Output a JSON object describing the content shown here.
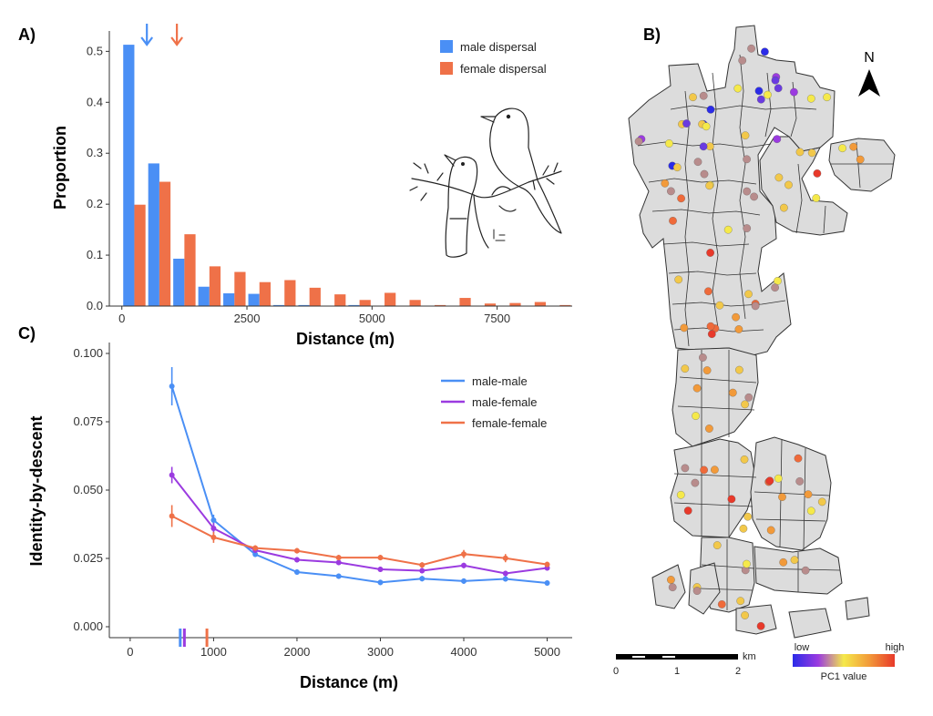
{
  "colors": {
    "male": "#4a8ff5",
    "female": "#ef7148",
    "male_female": "#9b3be0",
    "territory_fill": "#dcdcdc",
    "territory_stroke": "#333333"
  },
  "panel_labels": {
    "a": "A)",
    "b": "B)",
    "c": "C)"
  },
  "chart_data": [
    {
      "id": "A",
      "type": "bar",
      "xlabel": "Distance (m)",
      "ylabel": "Proportion",
      "xlim": [
        -250,
        9000
      ],
      "ylim": [
        0,
        0.54
      ],
      "xticks": [
        0,
        2500,
        5000,
        7500
      ],
      "yticks": [
        0.0,
        0.1,
        0.2,
        0.3,
        0.4,
        0.5
      ],
      "ytick_labels": [
        "0.0",
        "0.1",
        "0.2",
        "0.3",
        "0.4",
        "0.5"
      ],
      "bin_width": 500,
      "bin_centers": [
        250,
        750,
        1250,
        1750,
        2250,
        2750,
        3250,
        3750,
        4250,
        4750,
        5250,
        5750,
        6250,
        6750,
        7250,
        7750,
        8250,
        8750
      ],
      "series": [
        {
          "name": "male dispersal",
          "key": "male",
          "values": [
            0.513,
            0.28,
            0.093,
            0.038,
            0.025,
            0.024,
            0.002,
            0.002,
            0.0,
            0.002,
            0.0,
            0.0,
            0.0,
            0.0,
            0.0,
            0.0,
            0.0,
            0.0
          ]
        },
        {
          "name": "female dispersal",
          "key": "female",
          "values": [
            0.199,
            0.244,
            0.141,
            0.078,
            0.067,
            0.047,
            0.051,
            0.036,
            0.023,
            0.012,
            0.026,
            0.012,
            0.002,
            0.016,
            0.005,
            0.006,
            0.008,
            0.002
          ]
        }
      ],
      "mean_markers": [
        {
          "key": "male",
          "x": 500
        },
        {
          "key": "female",
          "x": 1100
        }
      ],
      "legend": [
        "male dispersal",
        "female dispersal"
      ]
    },
    {
      "id": "C",
      "type": "line",
      "xlabel": "Distance (m)",
      "ylabel": "Identity-by-descent",
      "xlim": [
        -250,
        5300
      ],
      "ylim": [
        -0.004,
        0.104
      ],
      "xticks": [
        0,
        1000,
        2000,
        3000,
        4000,
        5000
      ],
      "yticks": [
        0.0,
        0.025,
        0.05,
        0.075,
        0.1
      ],
      "ytick_labels": [
        "0.000",
        "0.025",
        "0.050",
        "0.075",
        "0.100"
      ],
      "x": [
        500,
        1000,
        1500,
        2000,
        2500,
        3000,
        3500,
        4000,
        4500,
        5000
      ],
      "series": [
        {
          "name": "male-male",
          "key": "male",
          "values": [
            0.088,
            0.039,
            0.0265,
            0.02,
            0.0185,
            0.0162,
            0.0176,
            0.0167,
            0.0175,
            0.016
          ],
          "err": [
            0.007,
            0.002,
            0.001,
            0.001,
            0.001,
            0.001,
            0.001,
            0.001,
            0.001,
            0.001
          ]
        },
        {
          "name": "male-female",
          "key": "male_female",
          "values": [
            0.0555,
            0.036,
            0.028,
            0.0245,
            0.0235,
            0.021,
            0.0205,
            0.0224,
            0.0195,
            0.0215
          ],
          "err": [
            0.003,
            0.002,
            0.001,
            0.001,
            0.001,
            0.001,
            0.001,
            0.001,
            0.001,
            0.001
          ]
        },
        {
          "name": "female-female",
          "key": "female",
          "values": [
            0.0405,
            0.0327,
            0.0288,
            0.0278,
            0.0253,
            0.0253,
            0.0226,
            0.0266,
            0.0251,
            0.0228
          ],
          "err": [
            0.004,
            0.002,
            0.001,
            0.001,
            0.001,
            0.001,
            0.001,
            0.0015,
            0.0015,
            0.001
          ]
        }
      ],
      "rug": [
        {
          "key": "male",
          "x": 600
        },
        {
          "key": "male_female",
          "x": 650
        },
        {
          "key": "female",
          "x": 920
        }
      ],
      "legend": [
        "male-male",
        "male-female",
        "female-female"
      ]
    }
  ],
  "map": {
    "north": "N",
    "scale": {
      "unit": "km",
      "labels": [
        "0",
        "1",
        "2"
      ]
    },
    "colorbar": {
      "low": "low",
      "high": "high",
      "title": "PC1 value",
      "stops": [
        "#2b2be8",
        "#9b3be0",
        "#f5e94a",
        "#f29a3a",
        "#e8392a"
      ]
    }
  },
  "illustration": {
    "signature": "JWF"
  }
}
